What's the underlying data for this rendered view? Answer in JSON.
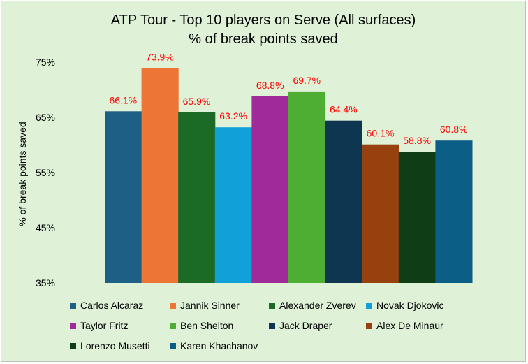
{
  "chart_data": {
    "type": "bar",
    "title": "ATP Tour - Top 10 players on Serve (All surfaces)",
    "subtitle": "% of break points saved",
    "xlabel": "",
    "ylabel": "% of break points saved",
    "ylim": [
      35,
      75
    ],
    "yticks": [
      35,
      45,
      55,
      65,
      75
    ],
    "ytick_labels": [
      "35%",
      "45%",
      "55%",
      "65%",
      "75%"
    ],
    "grid": false,
    "legend_position": "bottom",
    "series": [
      {
        "name": "Carlos Alcaraz",
        "value": 66.1,
        "label": "66.1%",
        "color": "#1e5f86"
      },
      {
        "name": "Jannik Sinner",
        "value": 73.9,
        "label": "73.9%",
        "color": "#ed7535"
      },
      {
        "name": "Alexander Zverev",
        "value": 65.9,
        "label": "65.9%",
        "color": "#1b6b27"
      },
      {
        "name": "Novak Djokovic",
        "value": 63.2,
        "label": "63.2%",
        "color": "#11a1d9"
      },
      {
        "name": "Taylor Fritz",
        "value": 68.8,
        "label": "68.8%",
        "color": "#a02a9a"
      },
      {
        "name": "Ben Shelton",
        "value": 69.7,
        "label": "69.7%",
        "color": "#4ead33"
      },
      {
        "name": "Jack Draper",
        "value": 64.4,
        "label": "64.4%",
        "color": "#0e3651"
      },
      {
        "name": "Alex De Minaur",
        "value": 60.1,
        "label": "60.1%",
        "color": "#97410f"
      },
      {
        "name": "Lorenzo Musetti",
        "value": 58.8,
        "label": "58.8%",
        "color": "#0f3d16"
      },
      {
        "name": "Karen Khachanov",
        "value": 60.8,
        "label": "60.8%",
        "color": "#0b5e85"
      }
    ],
    "data_label_color": "#ff0000"
  }
}
